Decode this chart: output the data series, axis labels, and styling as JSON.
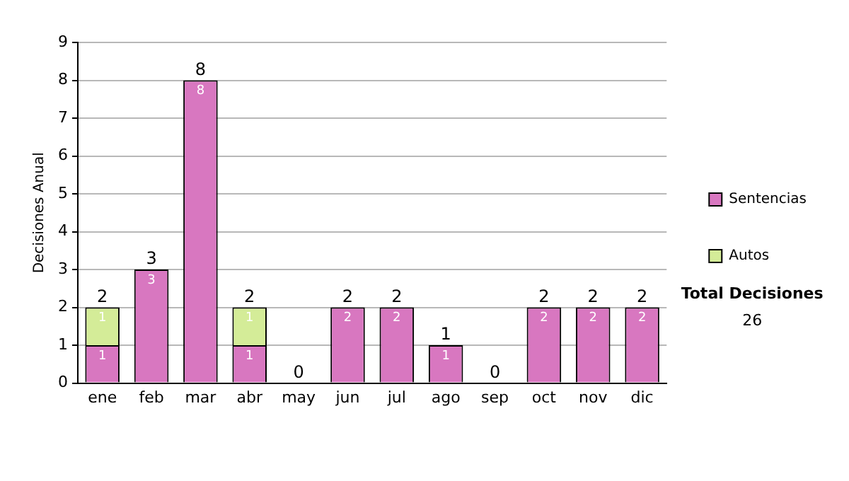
{
  "chart_data": {
    "type": "bar",
    "stacked": true,
    "ylabel": "Decisiones Anual",
    "categories": [
      "ene",
      "feb",
      "mar",
      "abr",
      "may",
      "jun",
      "jul",
      "ago",
      "sep",
      "oct",
      "nov",
      "dic"
    ],
    "series": [
      {
        "name": "Sentencias",
        "color": "#d877c0",
        "values": [
          1,
          3,
          8,
          1,
          0,
          2,
          2,
          1,
          0,
          2,
          2,
          2
        ],
        "value_labels": [
          "1",
          "3",
          "8",
          "1",
          null,
          "2",
          "2",
          "1",
          null,
          "2",
          "2",
          "2"
        ]
      },
      {
        "name": "Autos",
        "color": "#d4ec98",
        "values": [
          1,
          0,
          0,
          1,
          0,
          0,
          0,
          0,
          0,
          0,
          0,
          0
        ],
        "value_labels": [
          "1",
          null,
          null,
          "1",
          null,
          null,
          null,
          null,
          null,
          null,
          null,
          null
        ]
      }
    ],
    "totals": [
      "2",
      "3",
      "8",
      "2",
      "0",
      "2",
      "2",
      "1",
      "0",
      "2",
      "2",
      "2"
    ],
    "ylim": [
      0,
      9
    ],
    "yticks": [
      0,
      1,
      2,
      3,
      4,
      5,
      6,
      7,
      8,
      9
    ],
    "grid": "y",
    "legend": "right",
    "annotations": [
      "Total Decisiones",
      "26"
    ]
  }
}
